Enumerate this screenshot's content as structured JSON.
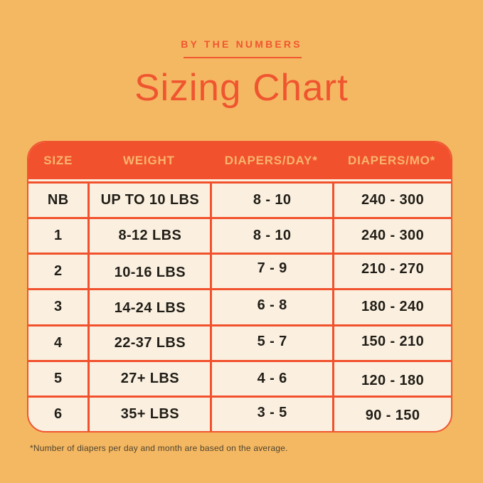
{
  "page": {
    "eyebrow": "BY THE NUMBERS",
    "title": "Sizing Chart",
    "footnote": "*Number of diapers per day and month are based on the average."
  },
  "colors": {
    "background": "#F5B862",
    "accent_red_orange": "#F1512D",
    "header_text": "#F9B56E",
    "cell_background": "#FBF0E0",
    "cell_text": "#211E17",
    "footnote_text": "#4E4430"
  },
  "chart_data": {
    "type": "table",
    "title": "Sizing Chart",
    "columns": [
      "SIZE",
      "WEIGHT",
      "DIAPERS/DAY*",
      "DIAPERS/MO*"
    ],
    "rows": [
      [
        "NB",
        "UP TO 10 LBS",
        "8 - 10",
        "240 - 300"
      ],
      [
        "1",
        "8-12 LBS",
        "8 - 10",
        "240 - 300"
      ],
      [
        "2",
        "10-16 LBS",
        "7 - 9",
        "210 - 270"
      ],
      [
        "3",
        "14-24 LBS",
        "6 - 8",
        "180 - 240"
      ],
      [
        "4",
        "22-37 LBS",
        "5 - 7",
        "150 - 210"
      ],
      [
        "5",
        "27+ LBS",
        "4 - 6",
        "120 - 180"
      ],
      [
        "6",
        "35+ LBS",
        "3 - 5",
        "90 - 150"
      ]
    ]
  }
}
